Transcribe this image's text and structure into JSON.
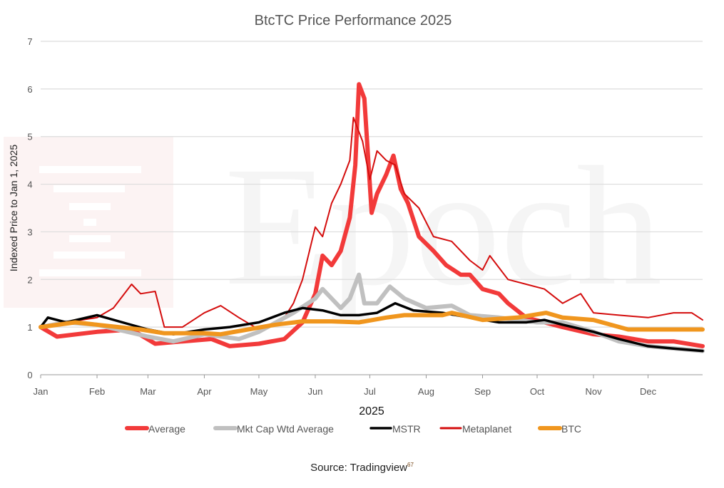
{
  "chart_data": {
    "type": "line",
    "title": "BtcTC Price Performance 2025",
    "xlabel": "2025",
    "ylabel": "Indexed Price to Jan 1, 2025",
    "ylim": [
      0,
      7
    ],
    "yticks": [
      "0",
      "1",
      "2",
      "3",
      "4",
      "5",
      "6",
      "7"
    ],
    "xticks": [
      "Jan",
      "Feb",
      "Mar",
      "Apr",
      "May",
      "Jun",
      "Jul",
      "Aug",
      "Sep",
      "Oct",
      "Nov",
      "Dec"
    ],
    "xlim": [
      "2025-01-01",
      "2025-12-31"
    ],
    "grid": true,
    "legend_position": "bottom",
    "series": [
      {
        "name": "Average",
        "color": "#f23a3a",
        "x": [
          "2025-01-01",
          "2025-01-10",
          "2025-02-01",
          "2025-02-20",
          "2025-03-05",
          "2025-03-20",
          "2025-04-05",
          "2025-04-15",
          "2025-05-01",
          "2025-05-15",
          "2025-05-25",
          "2025-06-01",
          "2025-06-05",
          "2025-06-10",
          "2025-06-15",
          "2025-06-20",
          "2025-06-23",
          "2025-06-25",
          "2025-06-28",
          "2025-07-02",
          "2025-07-05",
          "2025-07-10",
          "2025-07-14",
          "2025-07-18",
          "2025-07-22",
          "2025-07-28",
          "2025-08-05",
          "2025-08-12",
          "2025-08-20",
          "2025-08-25",
          "2025-09-01",
          "2025-09-10",
          "2025-09-15",
          "2025-09-25",
          "2025-10-05",
          "2025-10-15",
          "2025-11-01",
          "2025-11-15",
          "2025-12-01",
          "2025-12-15",
          "2025-12-31"
        ],
        "y": [
          1.0,
          0.8,
          0.9,
          0.95,
          0.65,
          0.7,
          0.75,
          0.6,
          0.65,
          0.75,
          1.1,
          1.7,
          2.5,
          2.3,
          2.6,
          3.3,
          4.4,
          6.1,
          5.8,
          3.4,
          3.8,
          4.2,
          4.6,
          3.9,
          3.6,
          2.9,
          2.6,
          2.3,
          2.1,
          2.1,
          1.8,
          1.7,
          1.5,
          1.2,
          1.1,
          1.0,
          0.85,
          0.8,
          0.7,
          0.7,
          0.6
        ]
      },
      {
        "name": "Mkt Cap Wtd Average",
        "color": "#c0c0c0",
        "x": [
          "2025-01-01",
          "2025-01-15",
          "2025-02-01",
          "2025-03-01",
          "2025-03-15",
          "2025-04-01",
          "2025-04-20",
          "2025-05-01",
          "2025-05-20",
          "2025-06-01",
          "2025-06-05",
          "2025-06-15",
          "2025-06-20",
          "2025-06-25",
          "2025-06-28",
          "2025-07-05",
          "2025-07-12",
          "2025-07-20",
          "2025-08-01",
          "2025-08-15",
          "2025-08-25",
          "2025-09-10",
          "2025-10-01",
          "2025-10-15",
          "2025-11-01",
          "2025-11-15",
          "2025-12-01",
          "2025-12-31"
        ],
        "y": [
          1.0,
          1.1,
          1.05,
          0.8,
          0.7,
          0.85,
          0.75,
          0.9,
          1.3,
          1.6,
          1.8,
          1.4,
          1.6,
          2.1,
          1.5,
          1.5,
          1.85,
          1.6,
          1.4,
          1.45,
          1.25,
          1.2,
          1.1,
          1.1,
          0.9,
          0.7,
          0.6,
          0.5
        ]
      },
      {
        "name": "MSTR",
        "color": "#000000",
        "x": [
          "2025-01-01",
          "2025-01-05",
          "2025-01-15",
          "2025-02-01",
          "2025-02-15",
          "2025-03-01",
          "2025-03-15",
          "2025-04-01",
          "2025-04-15",
          "2025-05-01",
          "2025-05-15",
          "2025-05-25",
          "2025-06-05",
          "2025-06-15",
          "2025-06-25",
          "2025-07-05",
          "2025-07-15",
          "2025-07-25",
          "2025-08-10",
          "2025-08-25",
          "2025-09-10",
          "2025-09-25",
          "2025-10-05",
          "2025-10-15",
          "2025-11-01",
          "2025-11-15",
          "2025-12-01",
          "2025-12-15",
          "2025-12-31"
        ],
        "y": [
          1.0,
          1.2,
          1.1,
          1.25,
          1.1,
          0.95,
          0.85,
          0.95,
          1.0,
          1.1,
          1.3,
          1.4,
          1.35,
          1.25,
          1.25,
          1.3,
          1.5,
          1.35,
          1.3,
          1.2,
          1.1,
          1.1,
          1.15,
          1.05,
          0.9,
          0.75,
          0.6,
          0.55,
          0.5
        ]
      },
      {
        "name": "Metaplanet",
        "color": "#d40d0d",
        "x": [
          "2025-01-01",
          "2025-01-15",
          "2025-02-01",
          "2025-02-10",
          "2025-02-20",
          "2025-02-25",
          "2025-03-05",
          "2025-03-10",
          "2025-03-20",
          "2025-04-01",
          "2025-04-10",
          "2025-04-20",
          "2025-05-01",
          "2025-05-15",
          "2025-05-20",
          "2025-05-25",
          "2025-06-01",
          "2025-06-05",
          "2025-06-10",
          "2025-06-15",
          "2025-06-20",
          "2025-06-22",
          "2025-06-27",
          "2025-07-01",
          "2025-07-05",
          "2025-07-10",
          "2025-07-15",
          "2025-07-20",
          "2025-07-28",
          "2025-08-05",
          "2025-08-15",
          "2025-08-25",
          "2025-09-01",
          "2025-09-05",
          "2025-09-15",
          "2025-09-25",
          "2025-10-05",
          "2025-10-15",
          "2025-10-25",
          "2025-11-01",
          "2025-11-15",
          "2025-12-01",
          "2025-12-15",
          "2025-12-25",
          "2025-12-31"
        ],
        "y": [
          1.0,
          1.1,
          1.2,
          1.4,
          1.9,
          1.7,
          1.75,
          1.0,
          1.0,
          1.3,
          1.45,
          1.2,
          0.95,
          1.2,
          1.5,
          2.0,
          3.1,
          2.9,
          3.6,
          4.0,
          4.5,
          5.4,
          4.9,
          4.1,
          4.7,
          4.5,
          4.4,
          3.8,
          3.5,
          2.9,
          2.8,
          2.4,
          2.2,
          2.5,
          2.0,
          1.9,
          1.8,
          1.5,
          1.7,
          1.3,
          1.25,
          1.2,
          1.3,
          1.3,
          1.15
        ]
      },
      {
        "name": "BTC",
        "color": "#f0961e",
        "x": [
          "2025-01-01",
          "2025-01-20",
          "2025-02-01",
          "2025-02-25",
          "2025-03-10",
          "2025-04-01",
          "2025-04-10",
          "2025-04-25",
          "2025-05-10",
          "2025-05-25",
          "2025-06-10",
          "2025-06-25",
          "2025-07-10",
          "2025-07-20",
          "2025-08-10",
          "2025-08-15",
          "2025-09-01",
          "2025-09-20",
          "2025-10-06",
          "2025-10-15",
          "2025-11-01",
          "2025-11-20",
          "2025-12-01",
          "2025-12-31"
        ],
        "y": [
          1.0,
          1.1,
          1.05,
          0.95,
          0.87,
          0.87,
          0.85,
          0.95,
          1.05,
          1.12,
          1.12,
          1.1,
          1.2,
          1.25,
          1.25,
          1.3,
          1.15,
          1.2,
          1.3,
          1.2,
          1.15,
          0.95,
          0.95,
          0.95
        ]
      }
    ],
    "legend_order": [
      "Average",
      "Mkt Cap Wtd Average",
      "MSTR",
      "Metaplanet",
      "BTC"
    ],
    "draw_order": [
      0,
      3,
      1,
      2,
      4
    ],
    "watermark": "Epoch"
  },
  "source": {
    "label": "Source: Tradingview",
    "footnote": "67"
  }
}
